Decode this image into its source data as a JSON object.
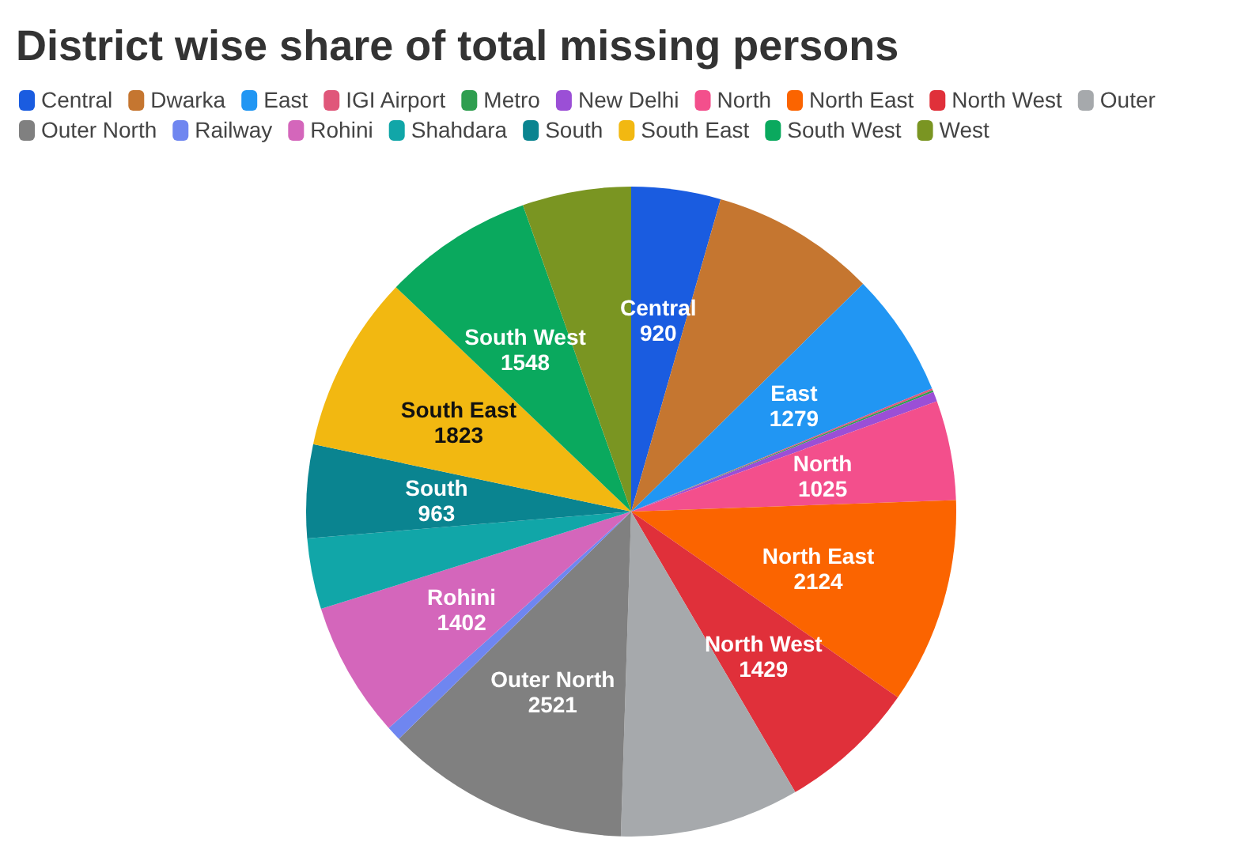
{
  "chart_data": {
    "type": "pie",
    "title": "District wise share of total missing persons",
    "categories": [
      "Central",
      "Dwarka",
      "East",
      "IGI Airport",
      "Metro",
      "New Delhi",
      "North",
      "North East",
      "North West",
      "Outer",
      "Outer North",
      "Railway",
      "Rohini",
      "Shahdara",
      "South",
      "South East",
      "South West",
      "West"
    ],
    "values": [
      920,
      1700,
      1279,
      20,
      20,
      100,
      1025,
      2124,
      1429,
      1850,
      2521,
      150,
      1402,
      730,
      963,
      1823,
      1548,
      1120
    ],
    "value_labels": [
      "920",
      null,
      "1279",
      null,
      null,
      null,
      "1025",
      "2124",
      "1429",
      null,
      "2521",
      null,
      "1402",
      null,
      "963",
      "1823",
      "1548",
      null
    ],
    "colors": [
      "#1a5ce0",
      "#c57630",
      "#2196f3",
      "#e0577a",
      "#2e9e4f",
      "#9b4fd6",
      "#f34f8c",
      "#fb6400",
      "#e0303a",
      "#a6a9ac",
      "#808080",
      "#6f86f0",
      "#d466bb",
      "#11a6a8",
      "#0a8490",
      "#f2b811",
      "#0aa95e",
      "#7a9522"
    ],
    "legend": "top left"
  }
}
